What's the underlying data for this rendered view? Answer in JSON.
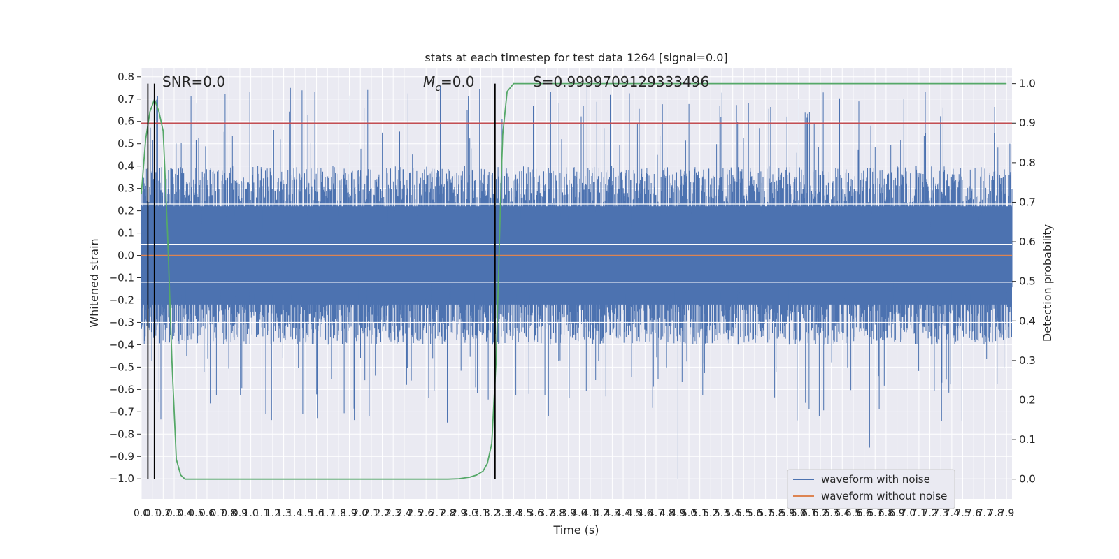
{
  "chart_data": {
    "type": "line",
    "title": "stats at each timestep for test data 1264 [signal=0.0]",
    "xlabel": "Time (s)",
    "ylabel": "Whitened strain",
    "y2label": "Detection probability",
    "xlim": [
      0.0,
      7.95
    ],
    "ylim": [
      -1.09,
      0.84
    ],
    "y2lim": [
      -0.05,
      1.04
    ],
    "xticks": [
      "0.0",
      "0.1",
      "0.2",
      "0.3",
      "0.4",
      "0.5",
      "0.6",
      "0.7",
      "0.8",
      "0.9",
      "1.0",
      "1.1",
      "1.2",
      "1.3",
      "1.4",
      "1.5",
      "1.6",
      "1.7",
      "1.8",
      "1.9",
      "2.0",
      "2.1",
      "2.2",
      "2.3",
      "2.4",
      "2.5",
      "2.6",
      "2.7",
      "2.8",
      "2.9",
      "3.0",
      "3.1",
      "3.2",
      "3.3",
      "3.4",
      "3.5",
      "3.6",
      "3.7",
      "3.8",
      "3.9",
      "4.0",
      "4.1",
      "4.2",
      "4.3",
      "4.4",
      "4.5",
      "4.6",
      "4.7",
      "4.8",
      "4.9",
      "5.0",
      "5.1",
      "5.2",
      "5.3",
      "5.4",
      "5.5",
      "5.6",
      "5.7",
      "5.8",
      "5.9",
      "6.0",
      "6.1",
      "6.2",
      "6.3",
      "6.4",
      "6.5",
      "6.6",
      "6.7",
      "6.8",
      "6.9",
      "7.0",
      "7.1",
      "7.2",
      "7.3",
      "7.4",
      "7.5",
      "7.6",
      "7.7",
      "7.8",
      "7.9"
    ],
    "yticks": [
      "0.8",
      "0.7",
      "0.6",
      "0.5",
      "0.4",
      "0.3",
      "0.2",
      "0.1",
      "0.0",
      "−0.1",
      "−0.2",
      "−0.3",
      "−0.4",
      "−0.5",
      "−0.6",
      "−0.7",
      "−0.8",
      "−0.9",
      "−1.0"
    ],
    "y2ticks": [
      "1.0",
      "0.9",
      "0.8",
      "0.7",
      "0.6",
      "0.5",
      "0.4",
      "0.3",
      "0.2",
      "0.1",
      "0.0"
    ],
    "annotations": {
      "snr": "SNR=0.0",
      "mc_symbol": "M",
      "mc_sub": "c",
      "mc_value": "=0.0",
      "s": "S=0.9999709129333496"
    },
    "noise_band": {
      "typical_min": -0.4,
      "typical_max": 0.4,
      "peak_max": 0.76,
      "peak_min": -1.0
    },
    "series": [
      {
        "name": "waveform with noise",
        "color": "#4c72b0"
      },
      {
        "name": "waveform without noise",
        "color": "#dd8452",
        "y": 0.0
      }
    ],
    "threshold": {
      "color": "#c44e52",
      "y2": 0.9
    },
    "detection_probability": {
      "color": "#55a868",
      "x": [
        0.0,
        0.04,
        0.08,
        0.12,
        0.16,
        0.2,
        0.24,
        0.28,
        0.32,
        0.36,
        0.4,
        0.6,
        1.0,
        2.0,
        2.8,
        2.9,
        3.0,
        3.06,
        3.12,
        3.16,
        3.2,
        3.24,
        3.28,
        3.3,
        3.34,
        3.4,
        3.5,
        4.0,
        5.0,
        6.0,
        7.0,
        7.9
      ],
      "y": [
        0.72,
        0.86,
        0.93,
        0.96,
        0.93,
        0.88,
        0.62,
        0.3,
        0.05,
        0.01,
        0.0,
        0.0,
        0.0,
        0.0,
        0.0,
        0.001,
        0.005,
        0.01,
        0.02,
        0.04,
        0.09,
        0.3,
        0.7,
        0.87,
        0.98,
        1.0,
        1.0,
        1.0,
        1.0,
        1.0,
        1.0,
        1.0
      ]
    },
    "vertical_lines_x": [
      0.06,
      0.12,
      3.23
    ],
    "legend": {
      "placement": "lower-right",
      "entries": [
        "waveform with noise",
        "waveform without noise"
      ]
    },
    "grid": true
  }
}
